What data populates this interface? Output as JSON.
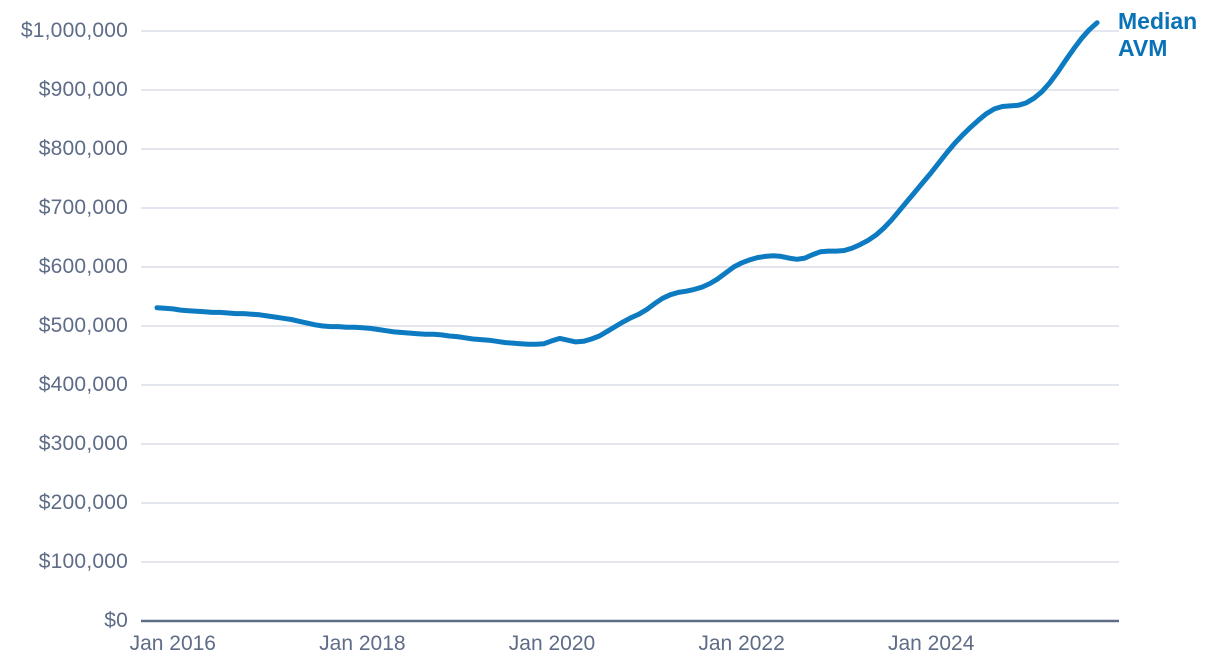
{
  "page": {
    "background": "#ffffff"
  },
  "legend": {
    "lines": [
      "Median",
      "AVM"
    ],
    "color": "#0a72b6",
    "position": "top-right"
  },
  "chart_data": {
    "type": "line",
    "title": "",
    "series": [
      {
        "name": "Median AVM"
      }
    ],
    "unit": "USD",
    "grid": "horizontal",
    "legend_position": "top-right",
    "line_color": "#0d7bc1",
    "gridline_color": "#dadde8",
    "axis_line_color": "#5e6c87",
    "label_color": "#5e6c87",
    "ylim": [
      0,
      1050000
    ],
    "y_ticks": [
      {
        "label": "$0",
        "value": 0
      },
      {
        "label": "$100,000",
        "value": 100000
      },
      {
        "label": "$200,000",
        "value": 200000
      },
      {
        "label": "$300,000",
        "value": 300000
      },
      {
        "label": "$400,000",
        "value": 400000
      },
      {
        "label": "$500,000",
        "value": 500000
      },
      {
        "label": "$600,000",
        "value": 600000
      },
      {
        "label": "$700,000",
        "value": 700000
      },
      {
        "label": "$800,000",
        "value": 800000
      },
      {
        "label": "$900,000",
        "value": 900000
      },
      {
        "label": "$1,000,000",
        "value": 1000000
      }
    ],
    "x_ticks": [
      {
        "label": "Jan 2016",
        "month_index": 2
      },
      {
        "label": "Jan 2018",
        "month_index": 26
      },
      {
        "label": "Jan 2020",
        "month_index": 50
      },
      {
        "label": "Jan 2022",
        "month_index": 74
      },
      {
        "label": "Jan 2024",
        "month_index": 98
      }
    ],
    "months": [
      "Nov 2015",
      "Dec 2015",
      "Jan 2016",
      "Feb 2016",
      "Mar 2016",
      "Apr 2016",
      "May 2016",
      "Jun 2016",
      "Jul 2016",
      "Aug 2016",
      "Sep 2016",
      "Oct 2016",
      "Nov 2016",
      "Dec 2016",
      "Jan 2017",
      "Feb 2017",
      "Mar 2017",
      "Apr 2017",
      "May 2017",
      "Jun 2017",
      "Jul 2017",
      "Aug 2017",
      "Sep 2017",
      "Oct 2017",
      "Nov 2017",
      "Dec 2017",
      "Jan 2018",
      "Feb 2018",
      "Mar 2018",
      "Apr 2018",
      "May 2018",
      "Jun 2018",
      "Jul 2018",
      "Aug 2018",
      "Sep 2018",
      "Oct 2018",
      "Nov 2018",
      "Dec 2018",
      "Jan 2019",
      "Feb 2019",
      "Mar 2019",
      "Apr 2019",
      "May 2019",
      "Jun 2019",
      "Jul 2019",
      "Aug 2019",
      "Sep 2019",
      "Oct 2019",
      "Nov 2019",
      "Dec 2019",
      "Jan 2020",
      "Feb 2020",
      "Mar 2020",
      "Apr 2020",
      "May 2020",
      "Jun 2020",
      "Jul 2020",
      "Aug 2020",
      "Sep 2020",
      "Oct 2020",
      "Nov 2020",
      "Dec 2020",
      "Jan 2021",
      "Feb 2021",
      "Mar 2021",
      "Apr 2021",
      "May 2021",
      "Jun 2021",
      "Jul 2021",
      "Aug 2021",
      "Sep 2021",
      "Oct 2021",
      "Nov 2021",
      "Dec 2021",
      "Jan 2022",
      "Feb 2022",
      "Mar 2022",
      "Apr 2022",
      "May 2022",
      "Jun 2022",
      "Jul 2022",
      "Aug 2022",
      "Sep 2022",
      "Oct 2022",
      "Nov 2022",
      "Dec 2022",
      "Jan 2023",
      "Feb 2023",
      "Mar 2023",
      "Apr 2023",
      "May 2023",
      "Jun 2023",
      "Jul 2023",
      "Aug 2023",
      "Sep 2023",
      "Oct 2023",
      "Nov 2023",
      "Dec 2023",
      "Jan 2024",
      "Feb 2024",
      "Mar 2024",
      "Apr 2024",
      "May 2024",
      "Jun 2024",
      "Jul 2024",
      "Aug 2024",
      "Sep 2024",
      "Oct 2024",
      "Nov 2024",
      "Dec 2024",
      "Jan 2025",
      "Feb 2025",
      "Mar 2025",
      "Apr 2025",
      "May 2025",
      "Jun 2025",
      "Jul 2025",
      "Aug 2025",
      "Sep 2025",
      "Oct 2025"
    ],
    "values": [
      531000,
      530000,
      529000,
      527000,
      526000,
      525000,
      524000,
      523000,
      523000,
      522000,
      521000,
      521000,
      520000,
      519000,
      517000,
      515000,
      513000,
      511000,
      508000,
      505000,
      502000,
      500000,
      499000,
      499000,
      498000,
      498000,
      497000,
      496000,
      494000,
      492000,
      490000,
      489000,
      488000,
      487000,
      486000,
      486000,
      485000,
      483000,
      482000,
      480000,
      478000,
      477000,
      476000,
      474000,
      472000,
      471000,
      470000,
      469000,
      469000,
      470000,
      475000,
      479000,
      476000,
      473000,
      474000,
      478000,
      483000,
      491000,
      499000,
      507000,
      514000,
      520000,
      528000,
      538000,
      547000,
      553000,
      557000,
      559000,
      562000,
      566000,
      572000,
      580000,
      590000,
      600000,
      607000,
      612000,
      616000,
      618000,
      619000,
      618000,
      615000,
      613000,
      615000,
      621000,
      626000,
      627000,
      627000,
      628000,
      632000,
      638000,
      645000,
      654000,
      666000,
      680000,
      696000,
      712000,
      728000,
      744000,
      760000,
      777000,
      794000,
      810000,
      824000,
      837000,
      849000,
      860000,
      868000,
      872000,
      873000,
      874000,
      878000,
      886000,
      897000,
      912000,
      930000,
      950000,
      969000,
      987000,
      1002000,
      1014000
    ]
  }
}
